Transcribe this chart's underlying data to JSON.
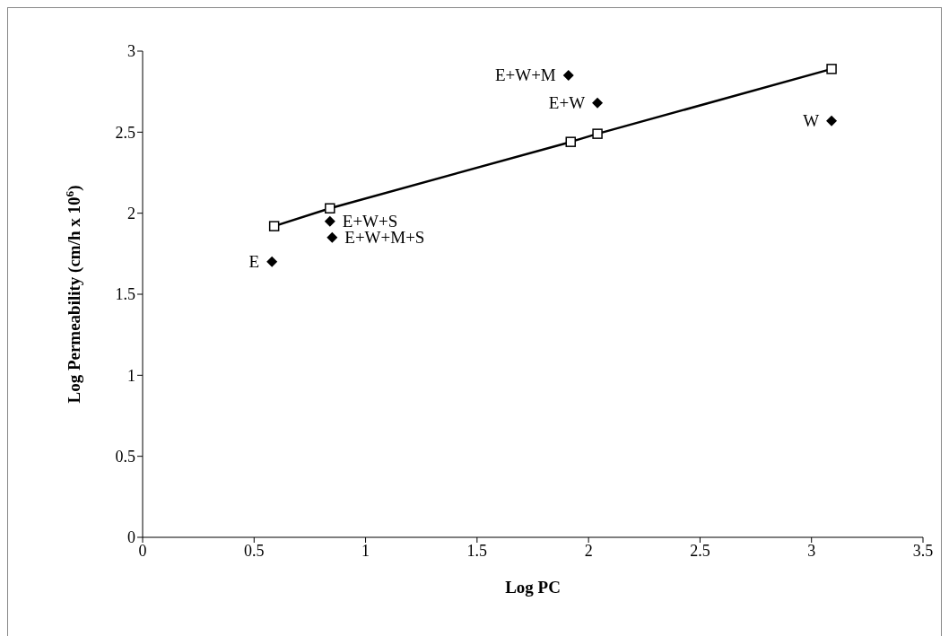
{
  "chart_data": {
    "type": "scatter",
    "xlabel": "Log PC",
    "ylabel": "Log Permeability (cm/h x 10$^{6}$)",
    "xlim": [
      0,
      3.5
    ],
    "xticks": [
      0,
      0.5,
      1,
      1.5,
      2,
      2.5,
      3,
      3.5
    ],
    "ylim": [
      0,
      3
    ],
    "yticks": [
      0,
      0.5,
      1,
      1.5,
      2,
      2.5,
      3
    ],
    "grid": false,
    "legend": false,
    "series": [
      {
        "marker": "diamond",
        "color": "#000000",
        "x": [
          0.58,
          0.84,
          0.85,
          1.91,
          2.04,
          3.09
        ],
        "values": [
          1.7,
          1.95,
          1.85,
          2.85,
          2.68,
          2.57
        ]
      },
      {
        "type": "line",
        "marker": "square",
        "color": "#000000",
        "x": [
          0.59,
          0.84,
          1.92,
          2.04,
          3.09
        ],
        "values": [
          1.92,
          2.03,
          2.44,
          2.49,
          2.89
        ]
      }
    ],
    "annotations": [
      {
        "text": "E",
        "x": 0.58,
        "y": 1.7
      },
      {
        "text": "E+W+S",
        "x": 0.84,
        "y": 1.95
      },
      {
        "text": "E+W+M+S",
        "x": 0.85,
        "y": 1.85
      },
      {
        "text": "E+W+M",
        "x": 1.91,
        "y": 2.85
      },
      {
        "text": "E+W",
        "x": 2.04,
        "y": 2.68
      },
      {
        "text": "W",
        "x": 3.09,
        "y": 2.57
      }
    ]
  }
}
